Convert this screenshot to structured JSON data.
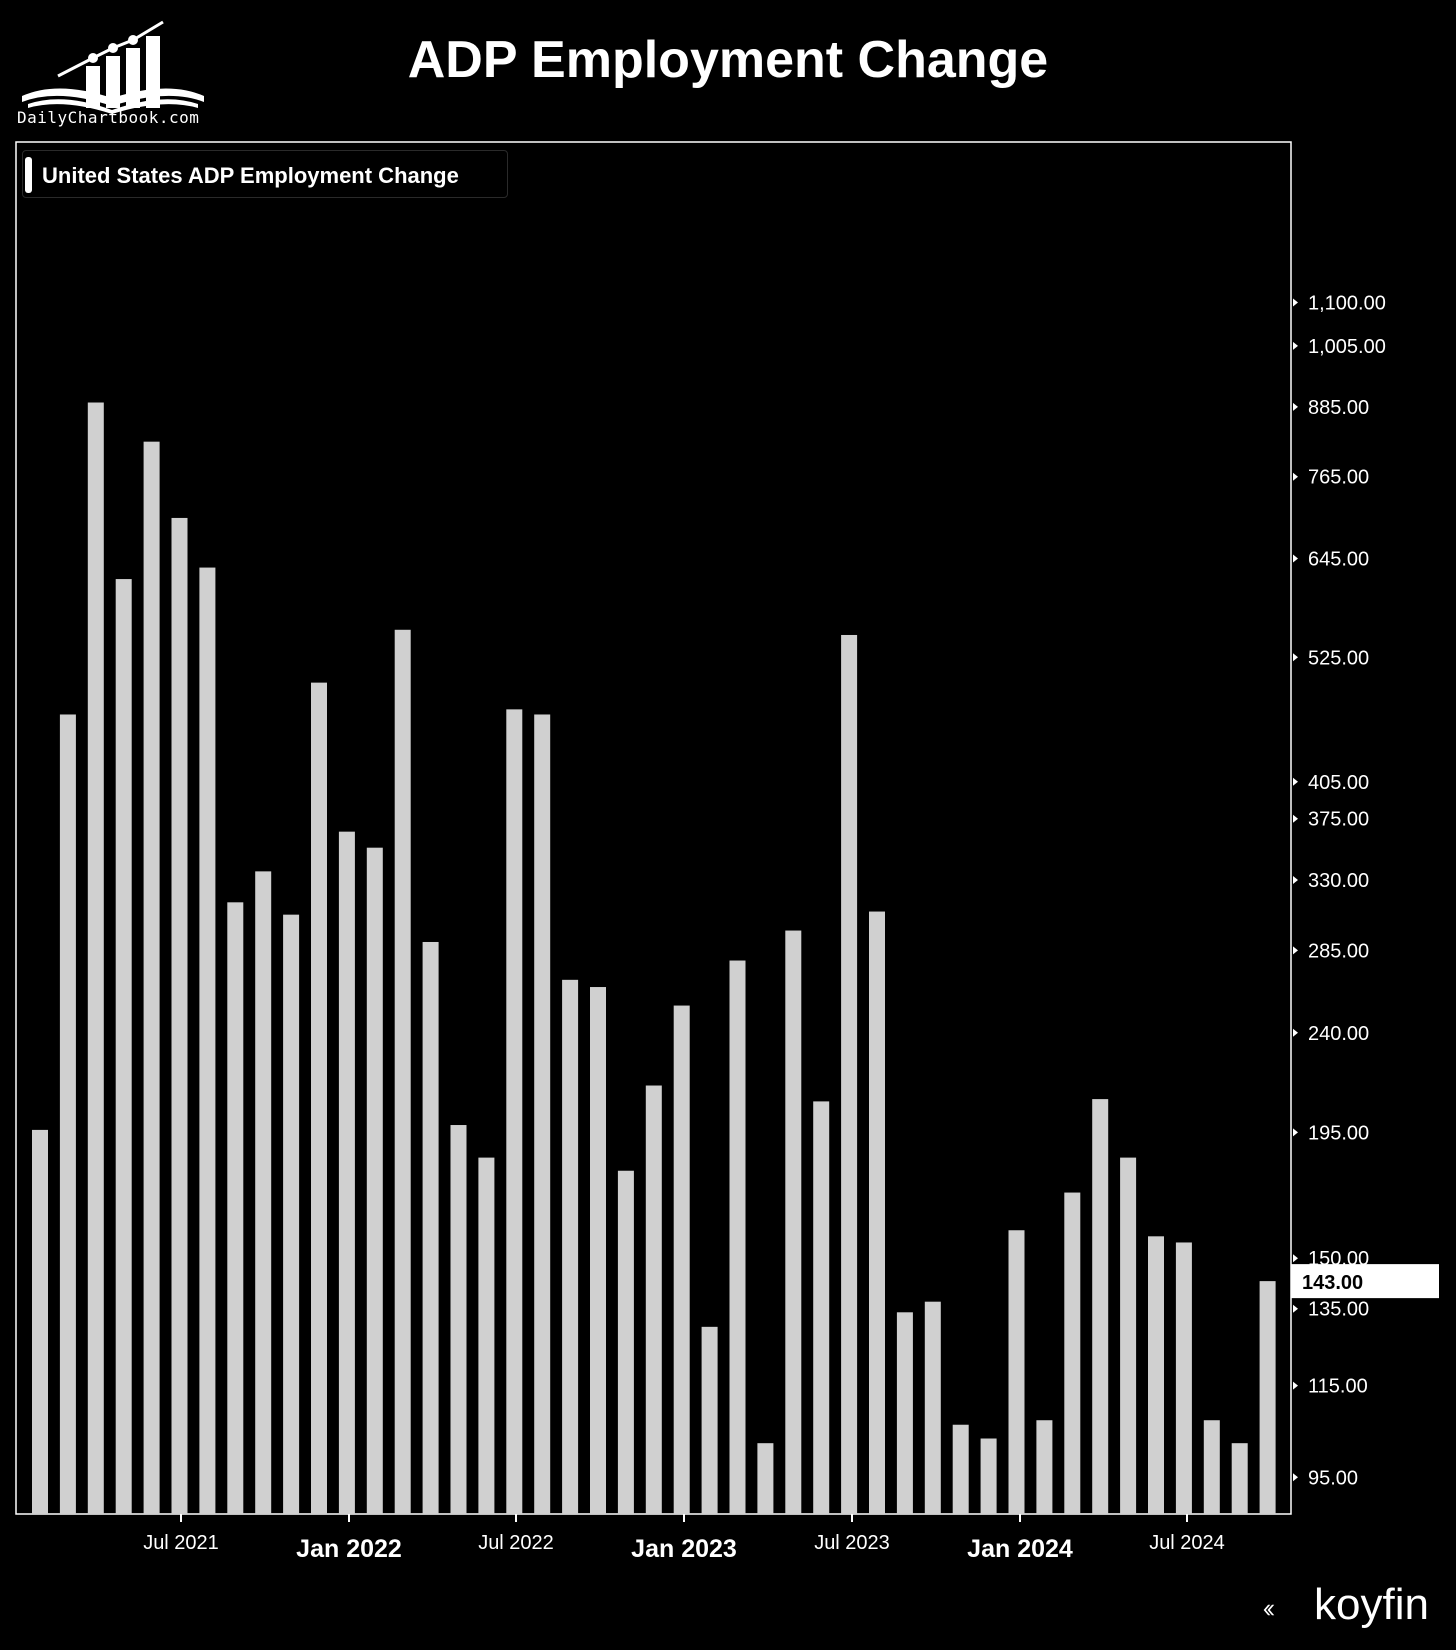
{
  "header": {
    "title": "ADP Employment Change",
    "site": "DailyChartbook.com"
  },
  "legend": {
    "label": "United States ADP Employment Change",
    "color": "#ffffff"
  },
  "brand": {
    "name": "koyfin"
  },
  "colors": {
    "background": "#000000",
    "bar": "#d0d0d0",
    "axis": "#ffffff",
    "last_value_bg": "#ffffff",
    "last_value_text": "#000000"
  },
  "chart_data": {
    "type": "bar",
    "title": "ADP Employment Change",
    "series": [
      {
        "name": "United States ADP Employment Change",
        "values": [
          196,
          466,
          893,
          618,
          823,
          702,
          633,
          315,
          336,
          307,
          498,
          365,
          353,
          556,
          290,
          198,
          185,
          471,
          466,
          268,
          264,
          180,
          215,
          254,
          130,
          279,
          102,
          297,
          208,
          550,
          309,
          134,
          137,
          106,
          103,
          159,
          107,
          172,
          209,
          185,
          157,
          155,
          107,
          102,
          143
        ]
      }
    ],
    "x_tick_labels": [
      "Jul 2021",
      "Jan 2022",
      "Jul 2022",
      "Jan 2023",
      "Jul 2023",
      "Jan 2024",
      "Jul 2024"
    ],
    "y_tick_labels": [
      "1,100.00",
      "1,005.00",
      "885.00",
      "765.00",
      "645.00",
      "525.00",
      "405.00",
      "375.00",
      "330.00",
      "285.00",
      "240.00",
      "195.00",
      "150.00",
      "135.00",
      "115.00",
      "95.00"
    ],
    "y_scale": "log",
    "ylim": [
      88,
      1450
    ],
    "last_value_label": "143.00",
    "grid": false,
    "legend_position": "top-left"
  }
}
